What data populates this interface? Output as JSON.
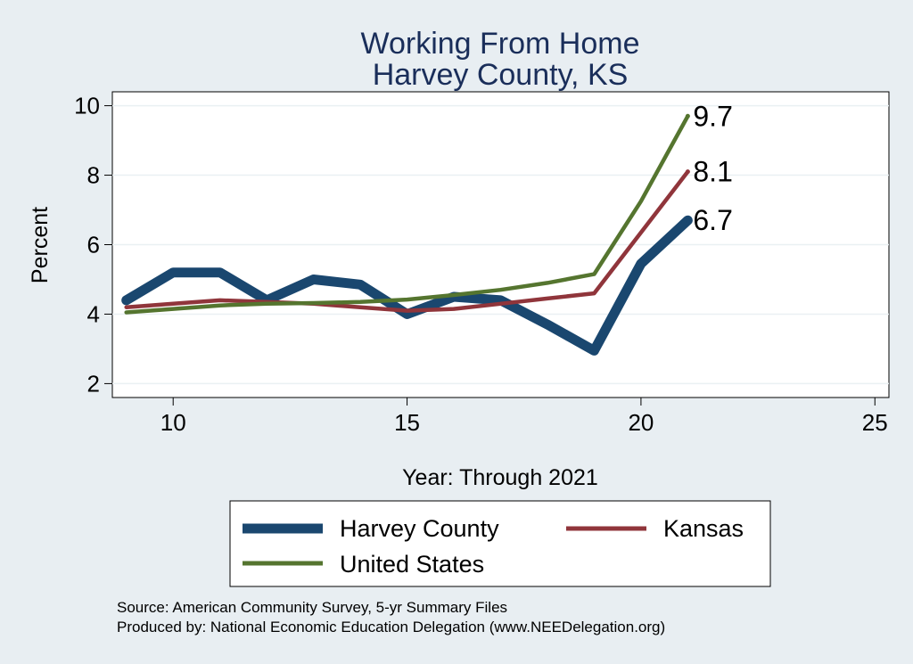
{
  "chart_data": {
    "type": "line",
    "title": [
      "Working From Home",
      "Harvey County, KS"
    ],
    "xlabel": "Year: Through 2021",
    "ylabel": "Percent",
    "xlim": [
      8.7,
      25.3
    ],
    "ylim": [
      1.6,
      10.4
    ],
    "xticks": [
      10,
      15,
      20,
      25
    ],
    "yticks": [
      2,
      4,
      6,
      8,
      10
    ],
    "grid": true,
    "series": [
      {
        "name": "Harvey County",
        "color": "#1a476f",
        "x": [
          9,
          10,
          11,
          12,
          13,
          14,
          15,
          16,
          17,
          18,
          19,
          20,
          21
        ],
        "y": [
          4.4,
          5.2,
          5.2,
          4.4,
          5.0,
          4.85,
          4.0,
          4.5,
          4.4,
          3.7,
          2.95,
          5.45,
          6.7
        ],
        "end_label": "6.7"
      },
      {
        "name": "Kansas",
        "color": "#90353b",
        "x": [
          9,
          10,
          11,
          12,
          13,
          14,
          15,
          16,
          17,
          18,
          19,
          20,
          21
        ],
        "y": [
          4.2,
          4.3,
          4.4,
          4.35,
          4.3,
          4.2,
          4.1,
          4.15,
          4.3,
          4.45,
          4.6,
          6.35,
          8.1
        ],
        "end_label": "8.1"
      },
      {
        "name": "United States",
        "color": "#55752f",
        "x": [
          9,
          10,
          11,
          12,
          13,
          14,
          15,
          16,
          17,
          18,
          19,
          20,
          21
        ],
        "y": [
          4.05,
          4.15,
          4.25,
          4.3,
          4.32,
          4.35,
          4.42,
          4.55,
          4.7,
          4.9,
          5.15,
          7.25,
          9.7
        ],
        "end_label": "9.7"
      }
    ],
    "legend": [
      "Harvey County",
      "Kansas",
      "United States"
    ],
    "notes": [
      "Source: American Community Survey, 5-yr Summary Files",
      "Produced by: National Economic Education Delegation (www.NEEDelegation.org)"
    ]
  }
}
